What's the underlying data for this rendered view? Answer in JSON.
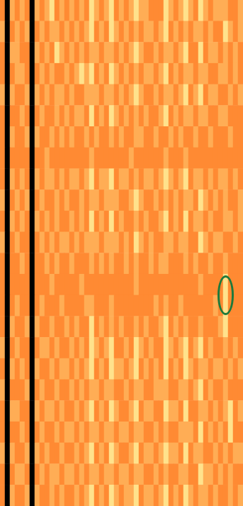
{
  "chart_data": {
    "type": "heatmap",
    "tick_labels": false,
    "value_range": [
      0,
      3
    ],
    "colors": [
      "#000000",
      "#ff8a33",
      "#ffad55",
      "#ffe28c"
    ],
    "highlight": {
      "column": 45,
      "rows": [
        13,
        14
      ],
      "color": "#1e7a3c"
    },
    "cells": [
      [
        1,
        0,
        2,
        1,
        2,
        1,
        0,
        2,
        1,
        2,
        3,
        1,
        2,
        1,
        2,
        1,
        2,
        1,
        3,
        2,
        1,
        2,
        3,
        1,
        2,
        1,
        2,
        3,
        2,
        2,
        1,
        1,
        1,
        3,
        2,
        1,
        2,
        3,
        2,
        1,
        3,
        2,
        1,
        2,
        2,
        2,
        1,
        1,
        2
      ],
      [
        2,
        0,
        1,
        2,
        1,
        2,
        0,
        1,
        2,
        1,
        2,
        2,
        1,
        2,
        1,
        2,
        1,
        2,
        3,
        1,
        2,
        1,
        3,
        2,
        1,
        2,
        1,
        2,
        1,
        2,
        2,
        1,
        2,
        3,
        1,
        2,
        1,
        2,
        1,
        2,
        2,
        1,
        2,
        1,
        1,
        3,
        2,
        1,
        2
      ],
      [
        1,
        0,
        2,
        2,
        1,
        1,
        0,
        2,
        1,
        2,
        1,
        3,
        2,
        1,
        2,
        1,
        2,
        1,
        2,
        2,
        1,
        2,
        2,
        1,
        2,
        1,
        2,
        3,
        2,
        1,
        1,
        2,
        1,
        2,
        2,
        1,
        2,
        3,
        1,
        1,
        3,
        1,
        2,
        2,
        1,
        2,
        1,
        2,
        1
      ],
      [
        1,
        0,
        1,
        2,
        2,
        1,
        0,
        1,
        2,
        1,
        2,
        1,
        1,
        2,
        1,
        2,
        3,
        2,
        3,
        1,
        2,
        1,
        3,
        2,
        1,
        2,
        1,
        2,
        1,
        2,
        2,
        1,
        2,
        3,
        1,
        2,
        1,
        2,
        2,
        1,
        2,
        2,
        1,
        1,
        2,
        2,
        1,
        2,
        1
      ],
      [
        2,
        0,
        2,
        1,
        1,
        2,
        0,
        2,
        1,
        2,
        1,
        2,
        2,
        1,
        2,
        1,
        1,
        2,
        2,
        2,
        1,
        2,
        2,
        1,
        2,
        1,
        2,
        3,
        2,
        1,
        1,
        2,
        1,
        2,
        2,
        1,
        2,
        3,
        1,
        2,
        3,
        1,
        2,
        2,
        1,
        1,
        2,
        1,
        2
      ],
      [
        1,
        0,
        1,
        1,
        2,
        1,
        0,
        1,
        2,
        1,
        1,
        2,
        1,
        2,
        1,
        2,
        2,
        1,
        3,
        1,
        2,
        1,
        3,
        2,
        1,
        2,
        1,
        2,
        1,
        2,
        1,
        1,
        2,
        3,
        1,
        2,
        1,
        2,
        2,
        1,
        2,
        2,
        1,
        1,
        2,
        2,
        1,
        1,
        1
      ],
      [
        1,
        0,
        2,
        1,
        1,
        2,
        0,
        2,
        1,
        1,
        2,
        1,
        2,
        1,
        2,
        1,
        1,
        2,
        1,
        2,
        1,
        1,
        2,
        1,
        2,
        1,
        1,
        2,
        2,
        1,
        1,
        2,
        1,
        1,
        2,
        1,
        2,
        1,
        1,
        2,
        1,
        1,
        2,
        1,
        1,
        1,
        2,
        1,
        1
      ],
      [
        1,
        0,
        1,
        1,
        1,
        1,
        0,
        1,
        1,
        2,
        1,
        1,
        1,
        1,
        1,
        1,
        1,
        1,
        2,
        1,
        1,
        1,
        1,
        1,
        1,
        1,
        2,
        1,
        1,
        1,
        1,
        1,
        1,
        2,
        1,
        1,
        1,
        2,
        1,
        1,
        1,
        1,
        1,
        1,
        1,
        1,
        1,
        1,
        1
      ],
      [
        1,
        0,
        2,
        1,
        2,
        1,
        0,
        2,
        1,
        2,
        2,
        1,
        2,
        1,
        2,
        2,
        1,
        2,
        3,
        1,
        2,
        2,
        3,
        1,
        2,
        2,
        1,
        2,
        1,
        2,
        2,
        1,
        2,
        3,
        2,
        1,
        2,
        3,
        1,
        2,
        2,
        1,
        2,
        1,
        2,
        2,
        1,
        2,
        1
      ],
      [
        2,
        0,
        1,
        2,
        1,
        2,
        0,
        1,
        2,
        1,
        1,
        2,
        1,
        2,
        1,
        1,
        2,
        1,
        2,
        2,
        1,
        2,
        2,
        2,
        1,
        1,
        2,
        3,
        2,
        1,
        1,
        2,
        1,
        2,
        1,
        2,
        1,
        2,
        2,
        1,
        3,
        2,
        1,
        2,
        1,
        2,
        1,
        1,
        2
      ],
      [
        1,
        0,
        2,
        1,
        2,
        1,
        0,
        2,
        1,
        2,
        1,
        2,
        1,
        1,
        2,
        1,
        2,
        1,
        3,
        1,
        2,
        1,
        3,
        1,
        2,
        1,
        1,
        2,
        1,
        2,
        1,
        1,
        2,
        3,
        1,
        2,
        1,
        3,
        1,
        2,
        2,
        1,
        2,
        1,
        1,
        2,
        2,
        1,
        2
      ],
      [
        2,
        0,
        1,
        2,
        1,
        1,
        0,
        1,
        2,
        1,
        2,
        1,
        2,
        2,
        1,
        2,
        1,
        2,
        2,
        2,
        1,
        2,
        2,
        2,
        1,
        2,
        1,
        3,
        2,
        1,
        2,
        1,
        1,
        2,
        2,
        1,
        2,
        2,
        1,
        1,
        3,
        2,
        1,
        2,
        2,
        1,
        1,
        2,
        1
      ],
      [
        1,
        0,
        1,
        1,
        2,
        1,
        0,
        1,
        1,
        2,
        1,
        2,
        1,
        1,
        2,
        1,
        1,
        1,
        2,
        1,
        2,
        1,
        2,
        1,
        1,
        2,
        1,
        2,
        1,
        1,
        2,
        1,
        2,
        2,
        1,
        1,
        1,
        2,
        1,
        2,
        1,
        1,
        2,
        1,
        1,
        2,
        1,
        1,
        1
      ],
      [
        1,
        0,
        1,
        1,
        1,
        1,
        0,
        1,
        1,
        1,
        2,
        1,
        1,
        1,
        1,
        1,
        2,
        1,
        1,
        1,
        1,
        1,
        1,
        1,
        1,
        1,
        1,
        2,
        1,
        1,
        1,
        1,
        1,
        1,
        1,
        1,
        1,
        1,
        1,
        1,
        2,
        1,
        1,
        1,
        1,
        3,
        1,
        1,
        1
      ],
      [
        1,
        0,
        1,
        2,
        1,
        1,
        0,
        1,
        2,
        1,
        1,
        1,
        2,
        1,
        1,
        1,
        1,
        2,
        2,
        1,
        1,
        1,
        2,
        1,
        1,
        1,
        1,
        1,
        1,
        1,
        1,
        2,
        1,
        2,
        1,
        1,
        2,
        1,
        1,
        1,
        1,
        1,
        1,
        2,
        1,
        3,
        1,
        1,
        1
      ],
      [
        1,
        0,
        2,
        1,
        1,
        2,
        0,
        2,
        1,
        1,
        2,
        1,
        1,
        2,
        1,
        2,
        1,
        1,
        3,
        1,
        2,
        1,
        2,
        1,
        2,
        1,
        1,
        2,
        1,
        2,
        1,
        1,
        2,
        3,
        1,
        2,
        1,
        2,
        1,
        1,
        2,
        1,
        1,
        1,
        2,
        3,
        1,
        1,
        1
      ],
      [
        2,
        0,
        1,
        2,
        1,
        1,
        0,
        1,
        2,
        2,
        1,
        2,
        1,
        1,
        2,
        1,
        2,
        1,
        3,
        2,
        1,
        2,
        3,
        1,
        1,
        2,
        1,
        3,
        2,
        1,
        2,
        1,
        1,
        3,
        2,
        1,
        2,
        3,
        1,
        2,
        3,
        1,
        2,
        1,
        1,
        2,
        1,
        2,
        1
      ],
      [
        1,
        0,
        2,
        1,
        2,
        1,
        0,
        2,
        1,
        1,
        2,
        1,
        2,
        2,
        1,
        2,
        1,
        2,
        3,
        1,
        2,
        1,
        3,
        2,
        2,
        1,
        2,
        3,
        1,
        2,
        1,
        2,
        1,
        3,
        1,
        2,
        1,
        3,
        2,
        1,
        2,
        2,
        1,
        2,
        2,
        1,
        2,
        1,
        2
      ],
      [
        2,
        0,
        1,
        1,
        1,
        2,
        0,
        1,
        2,
        1,
        1,
        2,
        1,
        1,
        2,
        1,
        2,
        1,
        2,
        2,
        1,
        2,
        2,
        1,
        1,
        2,
        1,
        2,
        2,
        1,
        1,
        2,
        2,
        2,
        1,
        1,
        2,
        2,
        1,
        2,
        3,
        1,
        2,
        1,
        1,
        2,
        1,
        1,
        1
      ],
      [
        1,
        0,
        2,
        2,
        1,
        1,
        0,
        2,
        1,
        2,
        2,
        1,
        2,
        1,
        1,
        2,
        1,
        2,
        3,
        1,
        2,
        1,
        3,
        2,
        1,
        1,
        2,
        3,
        1,
        2,
        2,
        1,
        1,
        3,
        2,
        2,
        1,
        3,
        1,
        1,
        2,
        2,
        1,
        2,
        1,
        2,
        3,
        1,
        2
      ],
      [
        1,
        0,
        1,
        1,
        2,
        1,
        0,
        1,
        2,
        1,
        1,
        2,
        1,
        2,
        2,
        1,
        2,
        1,
        2,
        2,
        1,
        2,
        2,
        1,
        2,
        2,
        1,
        2,
        2,
        1,
        1,
        2,
        1,
        2,
        1,
        1,
        2,
        2,
        2,
        1,
        3,
        1,
        2,
        1,
        2,
        1,
        3,
        1,
        1
      ],
      [
        2,
        0,
        2,
        1,
        1,
        2,
        0,
        2,
        1,
        2,
        1,
        1,
        2,
        1,
        1,
        2,
        1,
        2,
        3,
        1,
        2,
        1,
        3,
        2,
        1,
        1,
        2,
        3,
        1,
        2,
        2,
        1,
        2,
        3,
        2,
        2,
        1,
        3,
        1,
        2,
        2,
        1,
        1,
        2,
        1,
        2,
        1,
        2,
        2
      ],
      [
        1,
        0,
        1,
        2,
        2,
        1,
        0,
        1,
        2,
        1,
        2,
        2,
        1,
        2,
        2,
        1,
        2,
        1,
        2,
        2,
        1,
        2,
        2,
        1,
        2,
        2,
        1,
        2,
        2,
        1,
        1,
        2,
        1,
        2,
        1,
        1,
        2,
        2,
        1,
        1,
        3,
        2,
        2,
        1,
        2,
        1,
        2,
        1,
        1
      ],
      [
        1,
        0,
        2,
        1,
        1,
        2,
        0,
        2,
        1,
        1,
        2,
        1,
        2,
        1,
        1,
        2,
        1,
        2,
        3,
        1,
        2,
        1,
        3,
        2,
        1,
        2,
        2,
        3,
        1,
        2,
        2,
        1,
        2,
        3,
        1,
        2,
        1,
        3,
        2,
        1,
        2,
        2,
        1,
        2,
        1,
        1,
        2,
        1,
        2
      ]
    ]
  }
}
